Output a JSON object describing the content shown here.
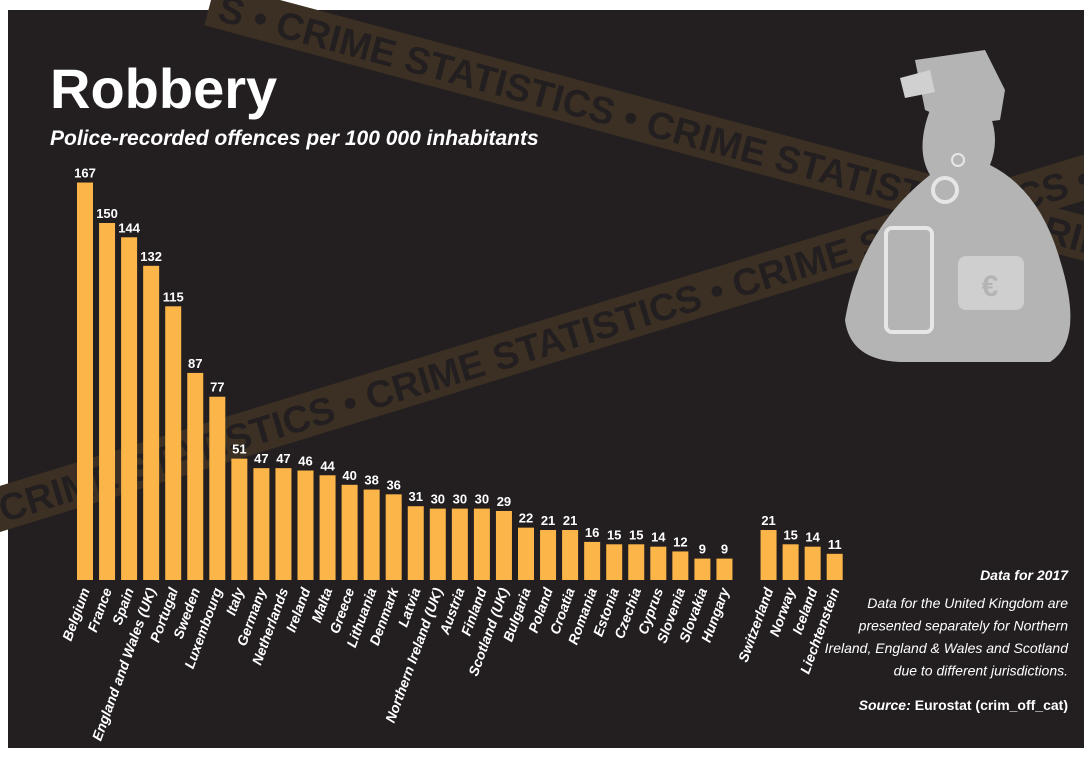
{
  "chart_data": {
    "type": "bar",
    "title": "Robbery",
    "subtitle": "Police-recorded offences per 100 000 inhabitants",
    "categories": [
      "Belgium",
      "France",
      "Spain",
      "England and Wales (UK)",
      "Portugal",
      "Sweden",
      "Luxembourg",
      "Italy",
      "Germany",
      "Netherlands",
      "Ireland",
      "Malta",
      "Greece",
      "Lithuania",
      "Denmark",
      "Latvia",
      "Northern Ireland (UK)",
      "Austria",
      "Finland",
      "Scotland (UK)",
      "Bulgaria",
      "Poland",
      "Croatia",
      "Romania",
      "Estonia",
      "Czechia",
      "Cyprus",
      "Slovenia",
      "Slovakia",
      "Hungary",
      null,
      "Switzerland",
      "Norway",
      "Iceland",
      "Liechtenstein"
    ],
    "values": [
      167,
      150,
      144,
      132,
      115,
      87,
      77,
      51,
      47,
      47,
      46,
      44,
      40,
      38,
      36,
      31,
      30,
      30,
      30,
      29,
      22,
      21,
      21,
      16,
      15,
      15,
      14,
      12,
      9,
      9,
      null,
      21,
      15,
      14,
      11
    ],
    "color": "#fbb549",
    "note_title": "Data for 2017",
    "note_lines": [
      "Data for the United Kingdom are",
      "presented separately for Northern",
      "Ireland, England & Wales and Scotland",
      "due to different jurisdictions."
    ],
    "source_label": "Source:",
    "source": "Eurostat (crim_off_cat)",
    "tapes": [
      "S • CRIME STATISTICS • CRIME STATISTICS • CRIME STATISTICS",
      "CRIME STATISTICS • CRIME STATISTICS • CRIME STATISTICS • CRIME"
    ]
  }
}
